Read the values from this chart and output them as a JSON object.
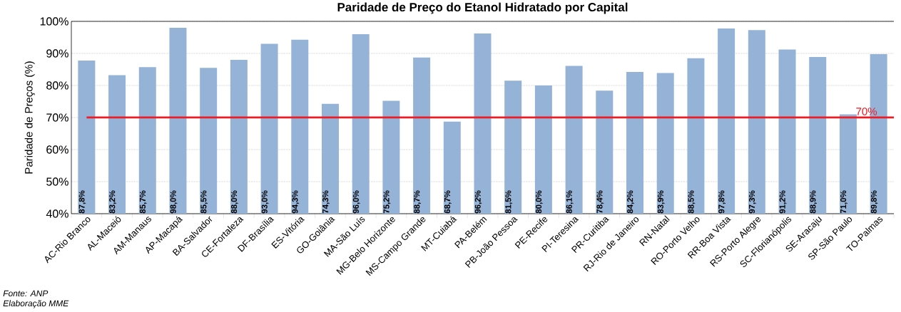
{
  "chart_data": {
    "type": "bar",
    "title": "Paridade de Preço do Etanol Hidratado por Capital",
    "ylabel": "Paridade de Preços (%)",
    "categories": [
      "AC-Rio Branco",
      "AL-Maceió",
      "AM-Manaus",
      "AP-Macapá",
      "BA-Salvador",
      "CE-Fortaleza",
      "DF-Brasília",
      "ES-Vitória",
      "GO-Goiânia",
      "MA-São Luís",
      "MG-Belo Horizonte",
      "MS-Campo Grande",
      "MT-Cuiabá",
      "PA-Belém",
      "PB-João Pessoa",
      "PE-Recife",
      "PI-Teresina",
      "PR-Curitiba",
      "RJ-Rio de Janeiro",
      "RN-Natal",
      "RO-Porto Velho",
      "RR-Boa Vista",
      "RS-Porto Alegre",
      "SC-Florianópolis",
      "SE-Aracaju",
      "SP-São Paulo",
      "TO-Palmas"
    ],
    "values": [
      87.8,
      83.2,
      85.7,
      98.0,
      85.5,
      88.0,
      93.0,
      94.3,
      74.3,
      96.0,
      75.2,
      88.7,
      68.7,
      96.2,
      81.5,
      80.0,
      86.1,
      78.4,
      84.2,
      83.9,
      88.5,
      97.8,
      97.3,
      91.2,
      88.9,
      71.0,
      89.8
    ],
    "value_labels": [
      "87,8%",
      "83,2%",
      "85,7%",
      "98,0%",
      "85,5%",
      "88,0%",
      "93,0%",
      "94,3%",
      "74,3%",
      "96,0%",
      "75,2%",
      "88,7%",
      "68,7%",
      "96,2%",
      "81,5%",
      "80,0%",
      "86,1%",
      "78,4%",
      "84,2%",
      "83,9%",
      "88,5%",
      "97,8%",
      "97,3%",
      "91,2%",
      "88,9%",
      "71,0%",
      "89,8%"
    ],
    "color": "#95b3d7",
    "ylim": [
      40,
      100
    ],
    "yticks": [
      {
        "value": 40,
        "label": "40%"
      },
      {
        "value": 50,
        "label": "50%"
      },
      {
        "value": 60,
        "label": "60%"
      },
      {
        "value": 70,
        "label": "70%"
      },
      {
        "value": 80,
        "label": "80%"
      },
      {
        "value": 90,
        "label": "90%"
      },
      {
        "value": 100,
        "label": "100%"
      }
    ],
    "grid": "y",
    "ref_lines": [
      {
        "axis": "y",
        "value": 70,
        "label": "70%",
        "color": "#ee1c25"
      }
    ],
    "annotations": [
      "Fonte: ANP",
      "Elaboração MME"
    ]
  }
}
